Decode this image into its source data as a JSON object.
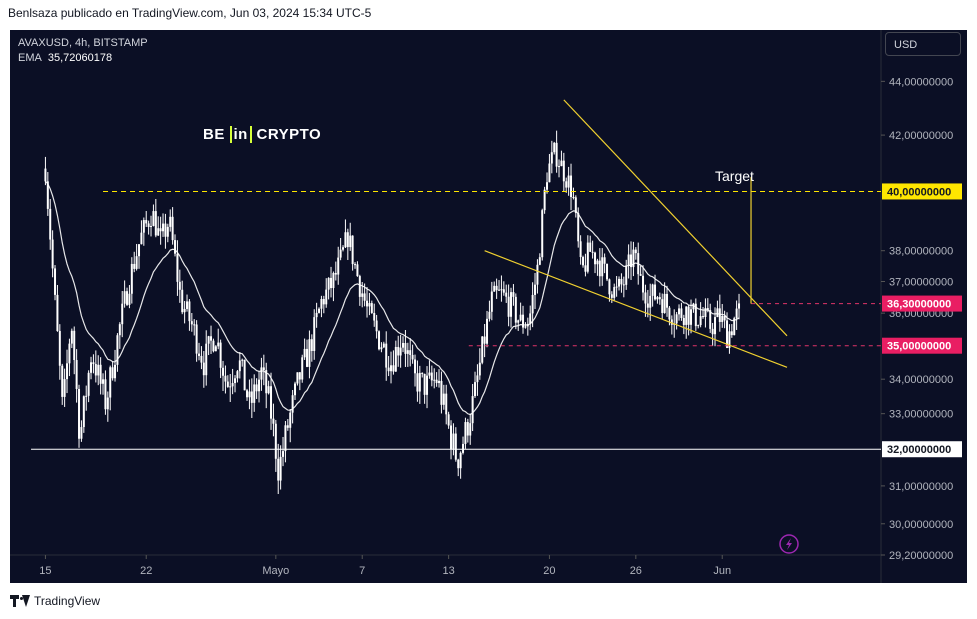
{
  "header": {
    "caption": "Benlsaza publicado en TradingView.com, Jun 03, 2024 15:34 UTC-5"
  },
  "footer": {
    "brand": "TradingView"
  },
  "logo": {
    "prefix": "BE",
    "middle": "in",
    "suffix": "CRYPTO"
  },
  "currency_label": "USD",
  "symbol": {
    "line": "AVAXUSD, 4h, BITSTAMP",
    "ema_label": "EMA",
    "ema_value": "35,72060178"
  },
  "colors": {
    "background": "#0b0f25",
    "candles": "#ffffff",
    "ema": "#ffffff",
    "wedge": "#f0d030",
    "dashed_support": "#e03468",
    "resistance_label": "#ffe600",
    "support_label": "#e91e63"
  },
  "chart_data": {
    "type": "candlestick",
    "scale": "log",
    "ylim": [
      29.2,
      46.0
    ],
    "y_ticks": [
      {
        "value": 44,
        "label": "44,00000000"
      },
      {
        "value": 42,
        "label": "42,00000000"
      },
      {
        "value": 38,
        "label": "38,00000000"
      },
      {
        "value": 37,
        "label": "37,00000000"
      },
      {
        "value": 36,
        "label": "36,00000000"
      },
      {
        "value": 34,
        "label": "34,00000000"
      },
      {
        "value": 33,
        "label": "33,00000000"
      },
      {
        "value": 31,
        "label": "31,00000000"
      },
      {
        "value": 30,
        "label": "30,00000000"
      },
      {
        "value": 29.2,
        "label": "29,20000000"
      }
    ],
    "x_ticks": [
      {
        "day": 15,
        "label": "15"
      },
      {
        "day": 22,
        "label": "22"
      },
      {
        "day": 31,
        "label": "Mayo"
      },
      {
        "day": 37,
        "label": "7"
      },
      {
        "day": 43,
        "label": "13"
      },
      {
        "day": 50,
        "label": "20"
      },
      {
        "day": 56,
        "label": "26"
      },
      {
        "day": 62,
        "label": "Jun"
      }
    ],
    "price_path": [
      [
        15.0,
        40.8
      ],
      [
        15.6,
        36.7
      ],
      [
        16.2,
        33.0
      ],
      [
        16.8,
        35.8
      ],
      [
        17.4,
        32.3
      ],
      [
        18.2,
        34.8
      ],
      [
        19.2,
        33.3
      ],
      [
        20.0,
        35.2
      ],
      [
        20.8,
        37.0
      ],
      [
        21.6,
        38.4
      ],
      [
        22.4,
        39.3
      ],
      [
        23.0,
        38.3
      ],
      [
        23.6,
        39.0
      ],
      [
        24.4,
        36.4
      ],
      [
        25.2,
        35.6
      ],
      [
        26.0,
        34.5
      ],
      [
        26.8,
        35.4
      ],
      [
        27.6,
        33.8
      ],
      [
        28.4,
        34.6
      ],
      [
        29.2,
        33.2
      ],
      [
        30.0,
        34.2
      ],
      [
        30.6,
        33.2
      ],
      [
        31.2,
        31.4
      ],
      [
        31.8,
        32.6
      ],
      [
        32.6,
        34.0
      ],
      [
        33.4,
        35.0
      ],
      [
        34.2,
        36.4
      ],
      [
        35.0,
        37.0
      ],
      [
        35.6,
        37.8
      ],
      [
        36.0,
        38.5
      ],
      [
        36.6,
        37.3
      ],
      [
        37.4,
        36.0
      ],
      [
        38.2,
        35.2
      ],
      [
        39.0,
        34.5
      ],
      [
        39.8,
        35.3
      ],
      [
        40.6,
        34.0
      ],
      [
        41.4,
        33.8
      ],
      [
        42.2,
        34.0
      ],
      [
        43.0,
        32.6
      ],
      [
        43.6,
        31.7
      ],
      [
        44.2,
        32.5
      ],
      [
        44.8,
        33.5
      ],
      [
        45.4,
        35.0
      ],
      [
        46.0,
        36.4
      ],
      [
        46.6,
        36.6
      ],
      [
        47.4,
        36.2
      ],
      [
        48.0,
        35.7
      ],
      [
        48.6,
        35.8
      ],
      [
        49.2,
        37.5
      ],
      [
        49.8,
        40.6
      ],
      [
        50.4,
        41.4
      ],
      [
        51.0,
        40.7
      ],
      [
        51.6,
        40.0
      ],
      [
        52.2,
        37.2
      ],
      [
        52.8,
        38.0
      ],
      [
        53.4,
        37.7
      ],
      [
        54.0,
        37.1
      ],
      [
        54.6,
        36.6
      ],
      [
        55.2,
        37.0
      ],
      [
        55.8,
        37.9
      ],
      [
        56.4,
        36.9
      ],
      [
        57.0,
        36.5
      ],
      [
        57.6,
        36.6
      ],
      [
        58.2,
        36.2
      ],
      [
        58.8,
        35.9
      ],
      [
        59.4,
        36.1
      ],
      [
        60.0,
        35.9
      ],
      [
        60.6,
        35.9
      ],
      [
        61.2,
        35.6
      ],
      [
        61.8,
        35.9
      ],
      [
        62.4,
        35.3
      ],
      [
        62.8,
        35.8
      ],
      [
        63.2,
        36.0
      ]
    ],
    "ema_period": 21,
    "wedge": {
      "upper": {
        "from": [
          51.0,
          43.3
        ],
        "to": [
          66.5,
          35.3
        ]
      },
      "lower": {
        "from": [
          45.5,
          38.0
        ],
        "to": [
          66.5,
          34.35
        ]
      }
    },
    "lines": [
      {
        "kind": "resistance",
        "price": 40.0,
        "label": "40,00000000",
        "x_start": 19.0,
        "style": "dashed"
      },
      {
        "kind": "target",
        "price": 36.3,
        "label": "36,30000000",
        "x_start": 64.0,
        "style": "dashed"
      },
      {
        "kind": "support",
        "price": 35.0,
        "label": "35,00000000",
        "x_start": 44.4,
        "style": "dashed"
      },
      {
        "kind": "support",
        "price": 32.0,
        "label": "32,00000000",
        "x_start": 14.0,
        "style": "solid"
      }
    ],
    "target_arrow": {
      "x": 64.0,
      "from_price": 36.3,
      "to_price": 40.5,
      "label": "Target"
    }
  }
}
